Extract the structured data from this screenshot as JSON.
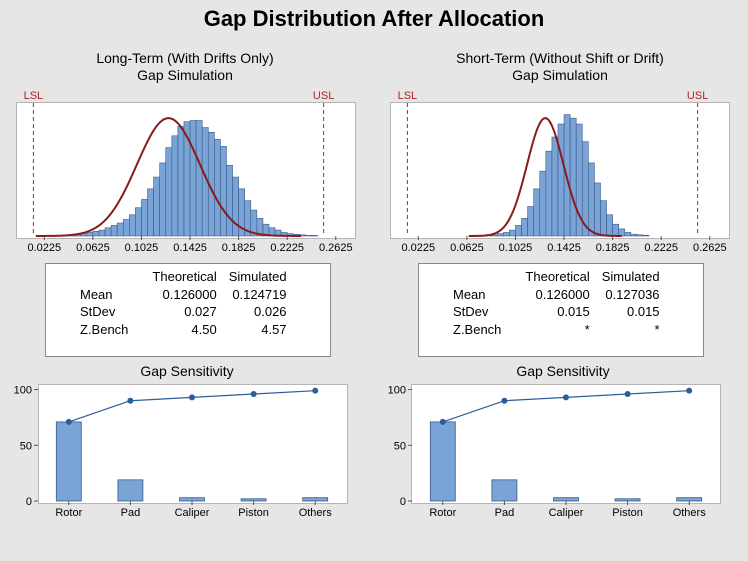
{
  "title": "Gap Distribution After Allocation",
  "panels": [
    {
      "title_line1": "Long-Term (With Drifts Only)",
      "title_line2": "Gap Simulation",
      "stats": {
        "headers": [
          "Theoretical",
          "Simulated"
        ],
        "rows": [
          {
            "label": "Mean",
            "theoretical": "0.126000",
            "simulated": "0.124719"
          },
          {
            "label": "StDev",
            "theoretical": "0.027",
            "simulated": "0.026"
          },
          {
            "label": "Z.Bench",
            "theoretical": "4.50",
            "simulated": "4.57"
          }
        ]
      },
      "sensitivity_title": "Gap Sensitivity"
    },
    {
      "title_line1": "Short-Term (Without Shift or Drift)",
      "title_line2": "Gap Simulation",
      "stats": {
        "headers": [
          "Theoretical",
          "Simulated"
        ],
        "rows": [
          {
            "label": "Mean",
            "theoretical": "0.126000",
            "simulated": "0.127036"
          },
          {
            "label": "StDev",
            "theoretical": "0.015",
            "simulated": "0.015"
          },
          {
            "label": "Z.Bench",
            "theoretical": "*",
            "simulated": "*"
          }
        ]
      },
      "sensitivity_title": "Gap Sensitivity"
    }
  ],
  "colors": {
    "bar_fill": "#7aa3d6",
    "bar_stroke": "#3a5a8a",
    "curve": "#8b1a1a",
    "spec_line": "#b22222",
    "pareto_line": "#2b5d9c"
  },
  "chart_data": [
    {
      "type": "histogram",
      "panel": "Long-Term (With Drifts Only)",
      "xlim": [
        0,
        0.2775
      ],
      "xticks": [
        "0.0225",
        "0.0625",
        "0.1025",
        "0.1425",
        "0.1825",
        "0.2225",
        "0.2625"
      ],
      "spec_limits": [
        {
          "name": "LSL",
          "value": 0.0135
        },
        {
          "name": "USL",
          "value": 0.2525
        }
      ],
      "bin_start": 0.0275,
      "bin_width": 0.005,
      "counts": [
        0.5,
        0.5,
        1,
        1,
        1.5,
        2,
        3,
        4,
        5,
        7,
        9,
        11,
        14,
        18,
        24,
        31,
        40,
        50,
        62,
        75,
        85,
        93,
        97,
        98,
        98,
        92,
        88,
        82,
        76,
        60,
        50,
        40,
        30,
        22,
        15,
        10,
        7,
        5,
        3,
        2,
        1.5,
        1,
        0.5,
        0.5
      ],
      "fitted_curve": {
        "distribution": "normal",
        "mean": 0.124719,
        "sd": 0.026,
        "peak": 100
      }
    },
    {
      "type": "histogram",
      "panel": "Short-Term (Without Shift or Drift)",
      "xlim": [
        0,
        0.2775
      ],
      "xticks": [
        "0.0225",
        "0.0625",
        "0.1025",
        "0.1425",
        "0.1825",
        "0.2225",
        "0.2625"
      ],
      "spec_limits": [
        {
          "name": "LSL",
          "value": 0.0135
        },
        {
          "name": "USL",
          "value": 0.2525
        }
      ],
      "bin_start": 0.0775,
      "bin_width": 0.005,
      "counts": [
        0.5,
        1,
        2,
        3,
        5,
        9,
        15,
        25,
        40,
        55,
        72,
        84,
        95,
        103,
        100,
        95,
        80,
        62,
        45,
        30,
        18,
        10,
        6,
        3,
        1.5,
        1,
        0.5
      ],
      "fitted_curve": {
        "distribution": "normal",
        "mean": 0.127036,
        "sd": 0.015,
        "peak": 100
      }
    },
    {
      "type": "bar",
      "panel": "Gap Sensitivity (left)",
      "categories": [
        "Rotor",
        "Pad",
        "Caliper",
        "Piston",
        "Others"
      ],
      "values": [
        71,
        19,
        3,
        2,
        3
      ],
      "cumulative": [
        71,
        90,
        93,
        96,
        99
      ],
      "ylim": [
        0,
        105
      ],
      "yticks": [
        0,
        50,
        100
      ]
    },
    {
      "type": "bar",
      "panel": "Gap Sensitivity (right)",
      "categories": [
        "Rotor",
        "Pad",
        "Caliper",
        "Piston",
        "Others"
      ],
      "values": [
        71,
        19,
        3,
        2,
        3
      ],
      "cumulative": [
        71,
        90,
        93,
        96,
        99
      ],
      "ylim": [
        0,
        105
      ],
      "yticks": [
        0,
        50,
        100
      ]
    }
  ]
}
